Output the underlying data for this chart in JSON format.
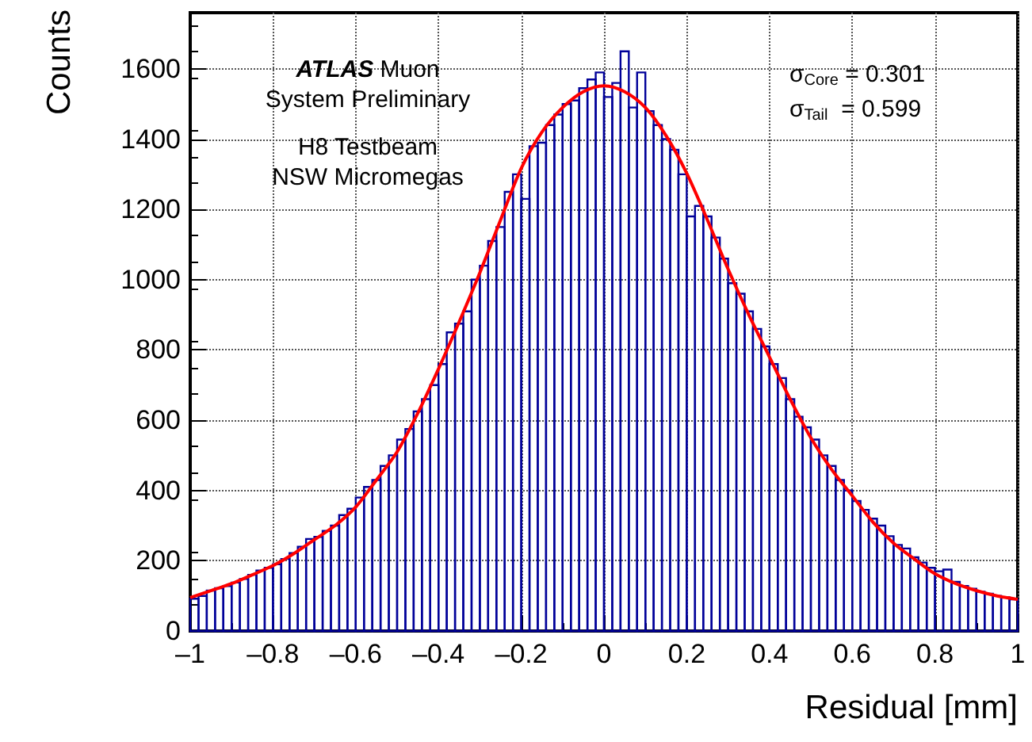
{
  "chart_data": {
    "type": "histogram",
    "xlabel": "Residual [mm]",
    "ylabel": "Counts",
    "xlim": [
      -1,
      1
    ],
    "ylim": [
      0,
      1760
    ],
    "xticks": [
      {
        "value": -1,
        "label": "–1"
      },
      {
        "value": -0.8,
        "label": "–0.8"
      },
      {
        "value": -0.6,
        "label": "–0.6"
      },
      {
        "value": -0.4,
        "label": "–0.4"
      },
      {
        "value": -0.2,
        "label": "–0.2"
      },
      0,
      0.2,
      0.4,
      0.6,
      0.8,
      1
    ],
    "yticks": [
      0,
      200,
      400,
      600,
      800,
      1000,
      1200,
      1400,
      1600
    ],
    "grid": true,
    "marker": "none",
    "line_style": "solid",
    "annotations": [
      "ATLAS Muon",
      "System Preliminary",
      "H8 Testbeam",
      "NSW Micromegas",
      "σ$_{Core}$ = 0.301",
      "σ$_{Tail}$  = 0.599"
    ],
    "series": [
      {
        "type": "histogram",
        "color": "#000099",
        "bins": [
          -1,
          -0.98,
          -0.96,
          -0.94,
          -0.92,
          -0.9,
          -0.88,
          -0.86,
          -0.84,
          -0.82,
          -0.8,
          -0.78,
          -0.76,
          -0.74,
          -0.72,
          -0.7,
          -0.68,
          -0.66,
          -0.64,
          -0.62,
          -0.6,
          -0.58,
          -0.56,
          -0.54,
          -0.52,
          -0.5,
          -0.48,
          -0.46,
          -0.44,
          -0.42,
          -0.4,
          -0.38,
          -0.36,
          -0.34,
          -0.32,
          -0.3,
          -0.28,
          -0.26,
          -0.24,
          -0.22,
          -0.2,
          -0.18,
          -0.16,
          -0.14,
          -0.12,
          -0.1,
          -0.08,
          -0.06,
          -0.04,
          -0.02,
          0,
          0.02,
          0.04,
          0.06,
          0.08,
          0.1,
          0.12,
          0.14,
          0.16,
          0.18,
          0.2,
          0.22,
          0.24,
          0.26,
          0.28,
          0.3,
          0.32,
          0.34,
          0.36,
          0.38,
          0.4,
          0.42,
          0.44,
          0.46,
          0.48,
          0.5,
          0.52,
          0.54,
          0.56,
          0.58,
          0.6,
          0.62,
          0.64,
          0.66,
          0.68,
          0.7,
          0.72,
          0.74,
          0.76,
          0.78,
          0.8,
          0.82,
          0.84,
          0.86,
          0.88,
          0.9,
          0.92,
          0.94,
          0.96,
          0.98,
          1
        ],
        "values": [
          92,
          100,
          115,
          122,
          128,
          138,
          148,
          160,
          172,
          180,
          190,
          205,
          222,
          240,
          262,
          268,
          285,
          300,
          330,
          348,
          380,
          410,
          430,
          470,
          500,
          545,
          575,
          625,
          660,
          700,
          760,
          850,
          875,
          910,
          1000,
          1040,
          1110,
          1150,
          1250,
          1300,
          1230,
          1380,
          1390,
          1440,
          1470,
          1500,
          1510,
          1545,
          1570,
          1590,
          1520,
          1560,
          1650,
          1490,
          1590,
          1480,
          1440,
          1400,
          1370,
          1300,
          1180,
          1210,
          1180,
          1120,
          1060,
          990,
          960,
          910,
          860,
          810,
          760,
          720,
          660,
          610,
          580,
          545,
          500,
          470,
          430,
          400,
          370,
          345,
          320,
          300,
          270,
          245,
          235,
          210,
          195,
          180,
          170,
          175,
          140,
          128,
          120,
          112,
          106,
          100,
          96,
          90
        ]
      },
      {
        "type": "line",
        "color": "#ff0000",
        "x": [
          -1,
          -0.95,
          -0.9,
          -0.85,
          -0.8,
          -0.75,
          -0.7,
          -0.65,
          -0.6,
          -0.55,
          -0.5,
          -0.45,
          -0.4,
          -0.35,
          -0.3,
          -0.25,
          -0.2,
          -0.15,
          -0.1,
          -0.05,
          0,
          0.05,
          0.1,
          0.15,
          0.2,
          0.25,
          0.3,
          0.35,
          0.4,
          0.45,
          0.5,
          0.55,
          0.6,
          0.65,
          0.7,
          0.75,
          0.8,
          0.85,
          0.9,
          0.95,
          1
        ],
        "values": [
          95,
          115,
          135,
          160,
          186,
          220,
          260,
          300,
          353,
          430,
          510,
          620,
          746,
          880,
          1020,
          1170,
          1317,
          1420,
          1490,
          1535,
          1552,
          1535,
          1490,
          1410,
          1303,
          1170,
          1030,
          900,
          780,
          660,
          550,
          460,
          385,
          310,
          250,
          205,
          163,
          135,
          115,
          100,
          90
        ]
      }
    ]
  }
}
